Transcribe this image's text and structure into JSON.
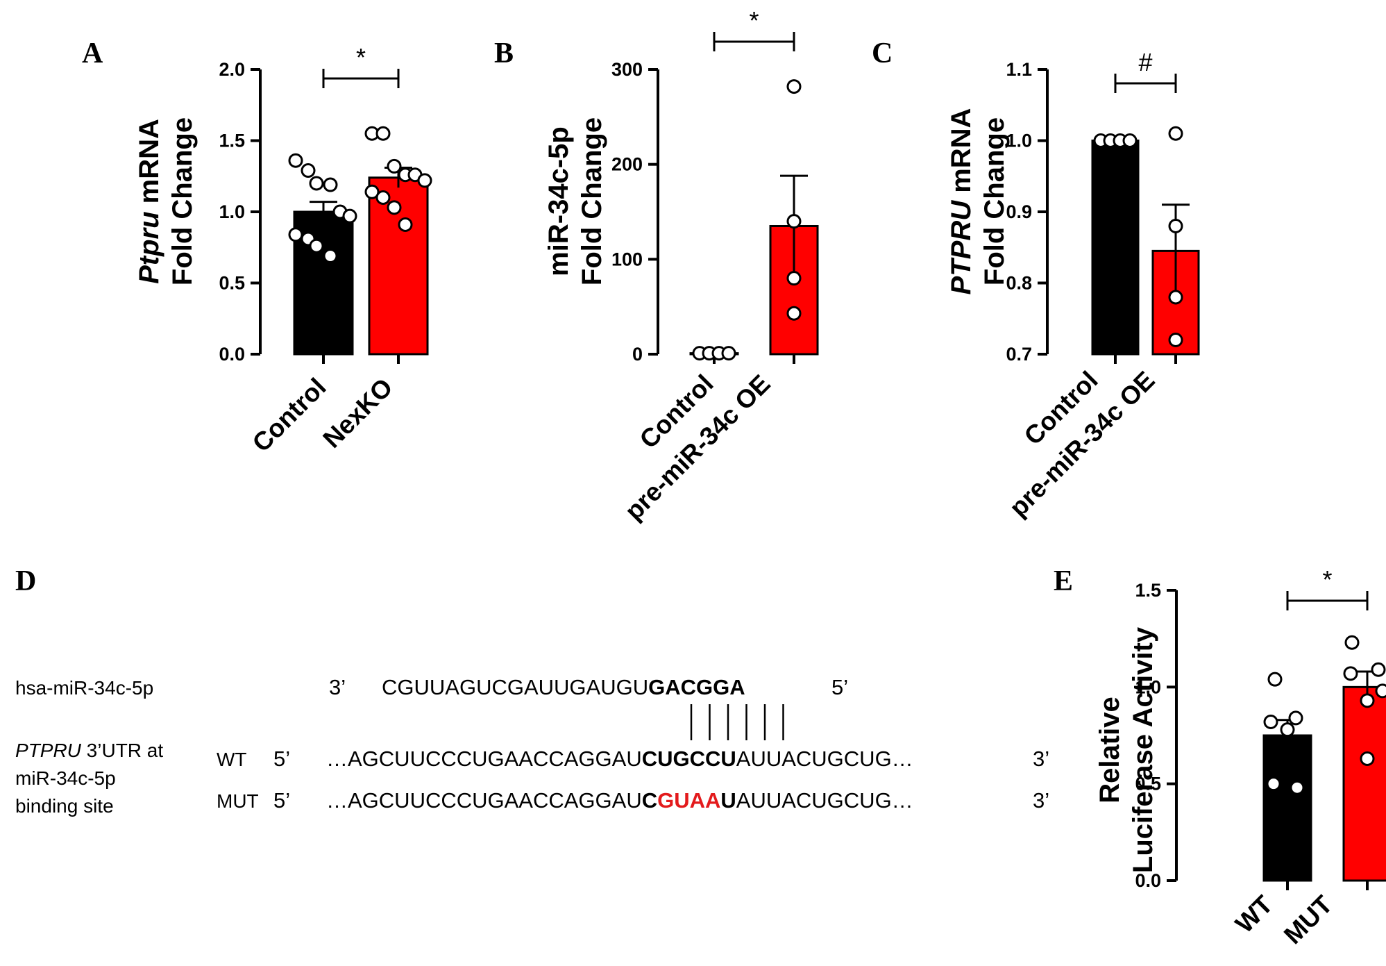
{
  "colors": {
    "control": "#000000",
    "treated": "#ff0000",
    "mutation_text": "#e31a1c"
  },
  "chart_data": [
    {
      "type": "bar",
      "panel": "A",
      "categories": [
        "Control",
        "NexKO"
      ],
      "values": [
        1.0,
        1.24
      ],
      "errors": [
        0.07,
        0.07
      ],
      "points": [
        [
          1.36,
          1.29,
          1.2,
          1.19,
          1.0,
          0.97,
          0.84,
          0.81,
          0.76,
          0.69
        ],
        [
          1.55,
          1.55,
          1.32,
          1.26,
          1.26,
          1.22,
          1.14,
          1.1,
          1.03,
          0.91
        ]
      ],
      "ylabel_italic": "Ptpru",
      "ylabel_rest": " mRNA",
      "ylabel_line2": "Fold Change",
      "ylim": [
        0,
        2.0
      ],
      "ticks": [
        "0.0",
        "0.5",
        "1.0",
        "1.5",
        "2.0"
      ],
      "sig": "*"
    },
    {
      "type": "bar",
      "panel": "B",
      "categories": [
        "Control",
        "pre-miR-34c OE"
      ],
      "values": [
        1,
        135
      ],
      "errors": [
        0,
        53
      ],
      "points": [
        [
          1,
          1,
          1,
          1
        ],
        [
          282,
          140,
          80,
          43
        ]
      ],
      "ylabel_line1": "miR-34c-5p",
      "ylabel_line2": "Fold Change",
      "ylim": [
        0,
        300
      ],
      "ticks": [
        "0",
        "100",
        "200",
        "300"
      ],
      "sig": "*"
    },
    {
      "type": "bar",
      "panel": "C",
      "categories": [
        "Control",
        "pre-miR-34c OE"
      ],
      "values": [
        1.0,
        0.845
      ],
      "errors": [
        0,
        0.065
      ],
      "points": [
        [
          1.0,
          1.0,
          1.0,
          1.0
        ],
        [
          1.01,
          0.88,
          0.78,
          0.72
        ]
      ],
      "ylabel_italic": "PTPRU",
      "ylabel_rest": " mRNA",
      "ylabel_line2": "Fold Change",
      "ylim": [
        0.7,
        1.1
      ],
      "ticks": [
        "0.7",
        "0.8",
        "0.9",
        "1.0",
        "1.1"
      ],
      "sig": "#"
    },
    {
      "type": "bar",
      "panel": "E",
      "categories": [
        "WT",
        "MUT"
      ],
      "values": [
        0.75,
        1.0
      ],
      "errors": [
        0.08,
        0.08
      ],
      "points": [
        [
          1.04,
          0.84,
          0.82,
          0.78,
          0.5,
          0.48
        ],
        [
          1.23,
          1.09,
          1.07,
          0.98,
          0.93,
          0.63
        ]
      ],
      "ylabel_line1": "Relative",
      "ylabel_line2": "Luciferase Activity",
      "ylim": [
        0,
        1.5
      ],
      "ticks": [
        "0.0",
        "0.5",
        "1.0",
        "1.5"
      ],
      "sig": "*"
    }
  ],
  "panel_d": {
    "label": "D",
    "mirna_name": "hsa-miR-34c-5p",
    "mirna_3": "3’",
    "mirna_seq_plain": "CGUUAGUCGAUUGAUGU",
    "mirna_seq_bold": "GACGGA",
    "mirna_5": "5’",
    "target_label_italic": "PTPRU",
    "target_label_rest": " 3’UTR at",
    "target_label_line2": "miR-34c-5p",
    "target_label_line3": "binding site",
    "wt_label": "WT",
    "wt_5": "5’",
    "wt_pre": "…AGCUUCCCUGAACCAGGAU",
    "wt_bold": "CUGCCU",
    "wt_post": "AUUACUGCUG…",
    "wt_3": "3’",
    "mut_label": "MUT",
    "mut_5": "5’",
    "mut_pre": "…AGCUUCCCUGAACCAGGAU",
    "mut_bold1": "C",
    "mut_red": "GUAA",
    "mut_bold2": "U",
    "mut_post": "AUUACUGCUG…",
    "mut_3": "3’",
    "pair_lines": 6
  }
}
